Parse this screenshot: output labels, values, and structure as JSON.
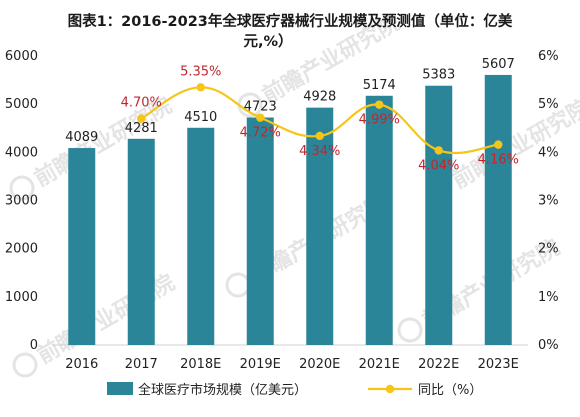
{
  "chart_data": {
    "type": "bar",
    "title": "图表1：2016-2023年全球医疗器械行业规模及预测值（单位：亿美元，%）",
    "title_line1": "图表1：2016-2023年全球医疗器械行业规模及预测值（单位：亿美",
    "title_line2": "元,%）",
    "categories": [
      "2016",
      "2017",
      "2018E",
      "2019E",
      "2020E",
      "2021E",
      "2022E",
      "2023E"
    ],
    "series": [
      {
        "name": "全球医疗市场规模（亿美元）",
        "type": "bar",
        "axis": "left",
        "color": "#2b8599",
        "values": [
          4089,
          4281,
          4510,
          4723,
          4928,
          5174,
          5383,
          5607
        ],
        "labels": [
          "4089",
          "4281",
          "4510",
          "4723",
          "4928",
          "5174",
          "5383",
          "5607"
        ]
      },
      {
        "name": "同比（%）",
        "type": "line",
        "axis": "right",
        "color": "#f5c518",
        "label_color": "#c0272d",
        "values": [
          null,
          4.7,
          5.35,
          4.72,
          4.34,
          4.99,
          4.04,
          4.16
        ],
        "labels": [
          "",
          "4.70%",
          "5.35%",
          "4.72%",
          "4.34%",
          "4.99%",
          "4.04%",
          "4.16%"
        ]
      }
    ],
    "y_left": {
      "ylim": [
        0,
        6000
      ],
      "ticks": [
        "0",
        "1000",
        "2000",
        "3000",
        "4000",
        "5000",
        "6000"
      ]
    },
    "y_right": {
      "ylim": [
        0,
        6
      ],
      "ticks": [
        "0%",
        "1%",
        "2%",
        "3%",
        "4%",
        "5%",
        "6%"
      ]
    },
    "grid": false,
    "legend_position": "bottom",
    "watermark": "前瞻产业研究院"
  }
}
